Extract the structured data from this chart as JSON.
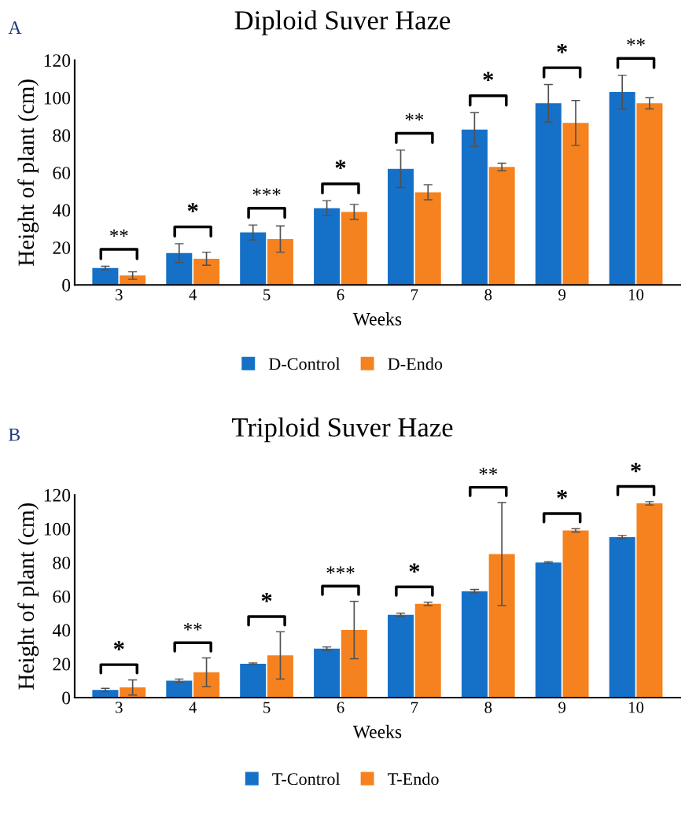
{
  "chart_data": [
    {
      "type": "bar",
      "title": "Diploid Suver Haze",
      "xlabel": "Weeks",
      "ylabel": "Height of plant (cm)",
      "categories": [
        "3",
        "4",
        "5",
        "6",
        "7",
        "8",
        "9",
        "10"
      ],
      "series": [
        {
          "name": "D-Control",
          "color": "#1570c8",
          "values": [
            9,
            17,
            28,
            41,
            62,
            83,
            97,
            103
          ],
          "errors": [
            1,
            5,
            4,
            4,
            10,
            9,
            10,
            9
          ]
        },
        {
          "name": "D-Endo",
          "color": "#f5821f",
          "values": [
            5,
            14,
            24.5,
            39,
            49.5,
            63,
            86.5,
            97
          ],
          "errors": [
            2,
            3.5,
            7,
            4,
            4,
            2,
            12,
            3
          ]
        }
      ],
      "ylim": [
        0,
        120
      ],
      "yticks": [
        0,
        20,
        40,
        60,
        80,
        100,
        120
      ],
      "grid": false,
      "legend": "bottom",
      "annotations": [
        "A",
        "**",
        "*",
        "***",
        "*",
        "**",
        "*",
        "*",
        "**"
      ]
    },
    {
      "type": "bar",
      "title": "Triploid Suver Haze",
      "xlabel": "Weeks",
      "ylabel": "Height of plant (cm)",
      "categories": [
        "3",
        "4",
        "5",
        "6",
        "7",
        "8",
        "9",
        "10"
      ],
      "series": [
        {
          "name": "T-Control",
          "color": "#1570c8",
          "values": [
            4.5,
            10,
            20,
            29,
            49,
            63,
            80,
            95
          ],
          "errors": [
            1,
            1,
            0.5,
            1,
            1,
            1,
            0.5,
            1
          ]
        },
        {
          "name": "T-Endo",
          "color": "#f5821f",
          "values": [
            6,
            15,
            25,
            40,
            55.5,
            85,
            99,
            115
          ],
          "errors": [
            4.5,
            8.5,
            14,
            17,
            1,
            30.5,
            1,
            1
          ]
        }
      ],
      "ylim": [
        0,
        120
      ],
      "yticks": [
        0,
        20,
        40,
        60,
        80,
        100,
        120
      ],
      "grid": false,
      "legend": "bottom",
      "annotations": [
        "B",
        "*",
        "**",
        "*",
        "***",
        "*",
        "**",
        "*",
        "*"
      ]
    }
  ]
}
